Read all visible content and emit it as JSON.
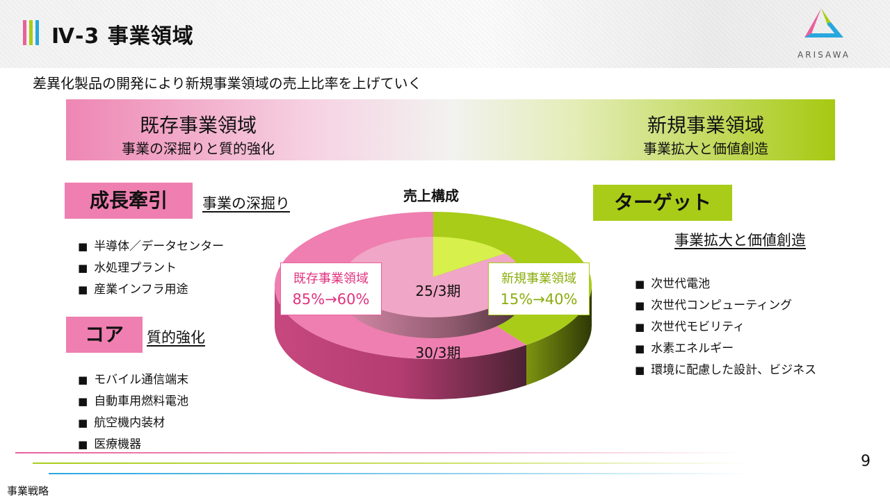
{
  "header": {
    "title": "Ⅳ-3  事業領域",
    "logo_text": "ARISAWA"
  },
  "subtitle": "差異化製品の開発により新規事業領域の売上比率を上げていく",
  "banner": {
    "left_title": "既存事業領域",
    "left_sub": "事業の深掘りと質的強化",
    "right_title": "新規事業領域",
    "right_sub": "事業拡大と価値創造"
  },
  "growth": {
    "tag": "成長牽引",
    "label": "事業の深掘り",
    "items": [
      "半導体／データセンター",
      "水処理プラント",
      "産業インフラ用途"
    ]
  },
  "core": {
    "tag": "コア",
    "label": "質的強化",
    "items": [
      "モバイル通信端末",
      "自動車用燃料電池",
      "航空機内装材",
      "医療機器"
    ]
  },
  "target": {
    "tag": "ターゲット",
    "label": "事業拡大と価値創造",
    "items": [
      "次世代電池",
      "次世代コンピューティング",
      "次世代モビリティ",
      "水素エネルギー",
      "環境に配慮した設計、ビジネス"
    ]
  },
  "chart_data": {
    "type": "pie",
    "title": "売上構成",
    "rings": [
      {
        "name": "25/3期",
        "categories": [
          "既存事業領域",
          "新規事業領域"
        ],
        "values": [
          85,
          15
        ]
      },
      {
        "name": "30/3期",
        "categories": [
          "既存事業領域",
          "新規事業領域"
        ],
        "values": [
          60,
          40
        ]
      }
    ],
    "callouts": {
      "existing_title": "既存事業領域",
      "existing_value": "85%→60%",
      "new_title": "新規事業領域",
      "new_value": "15%→40%"
    },
    "colors": {
      "existing": "#ef7fb0",
      "new": "#a9cc19"
    }
  },
  "footer": {
    "page_number": "9",
    "section": "事業戦略"
  }
}
